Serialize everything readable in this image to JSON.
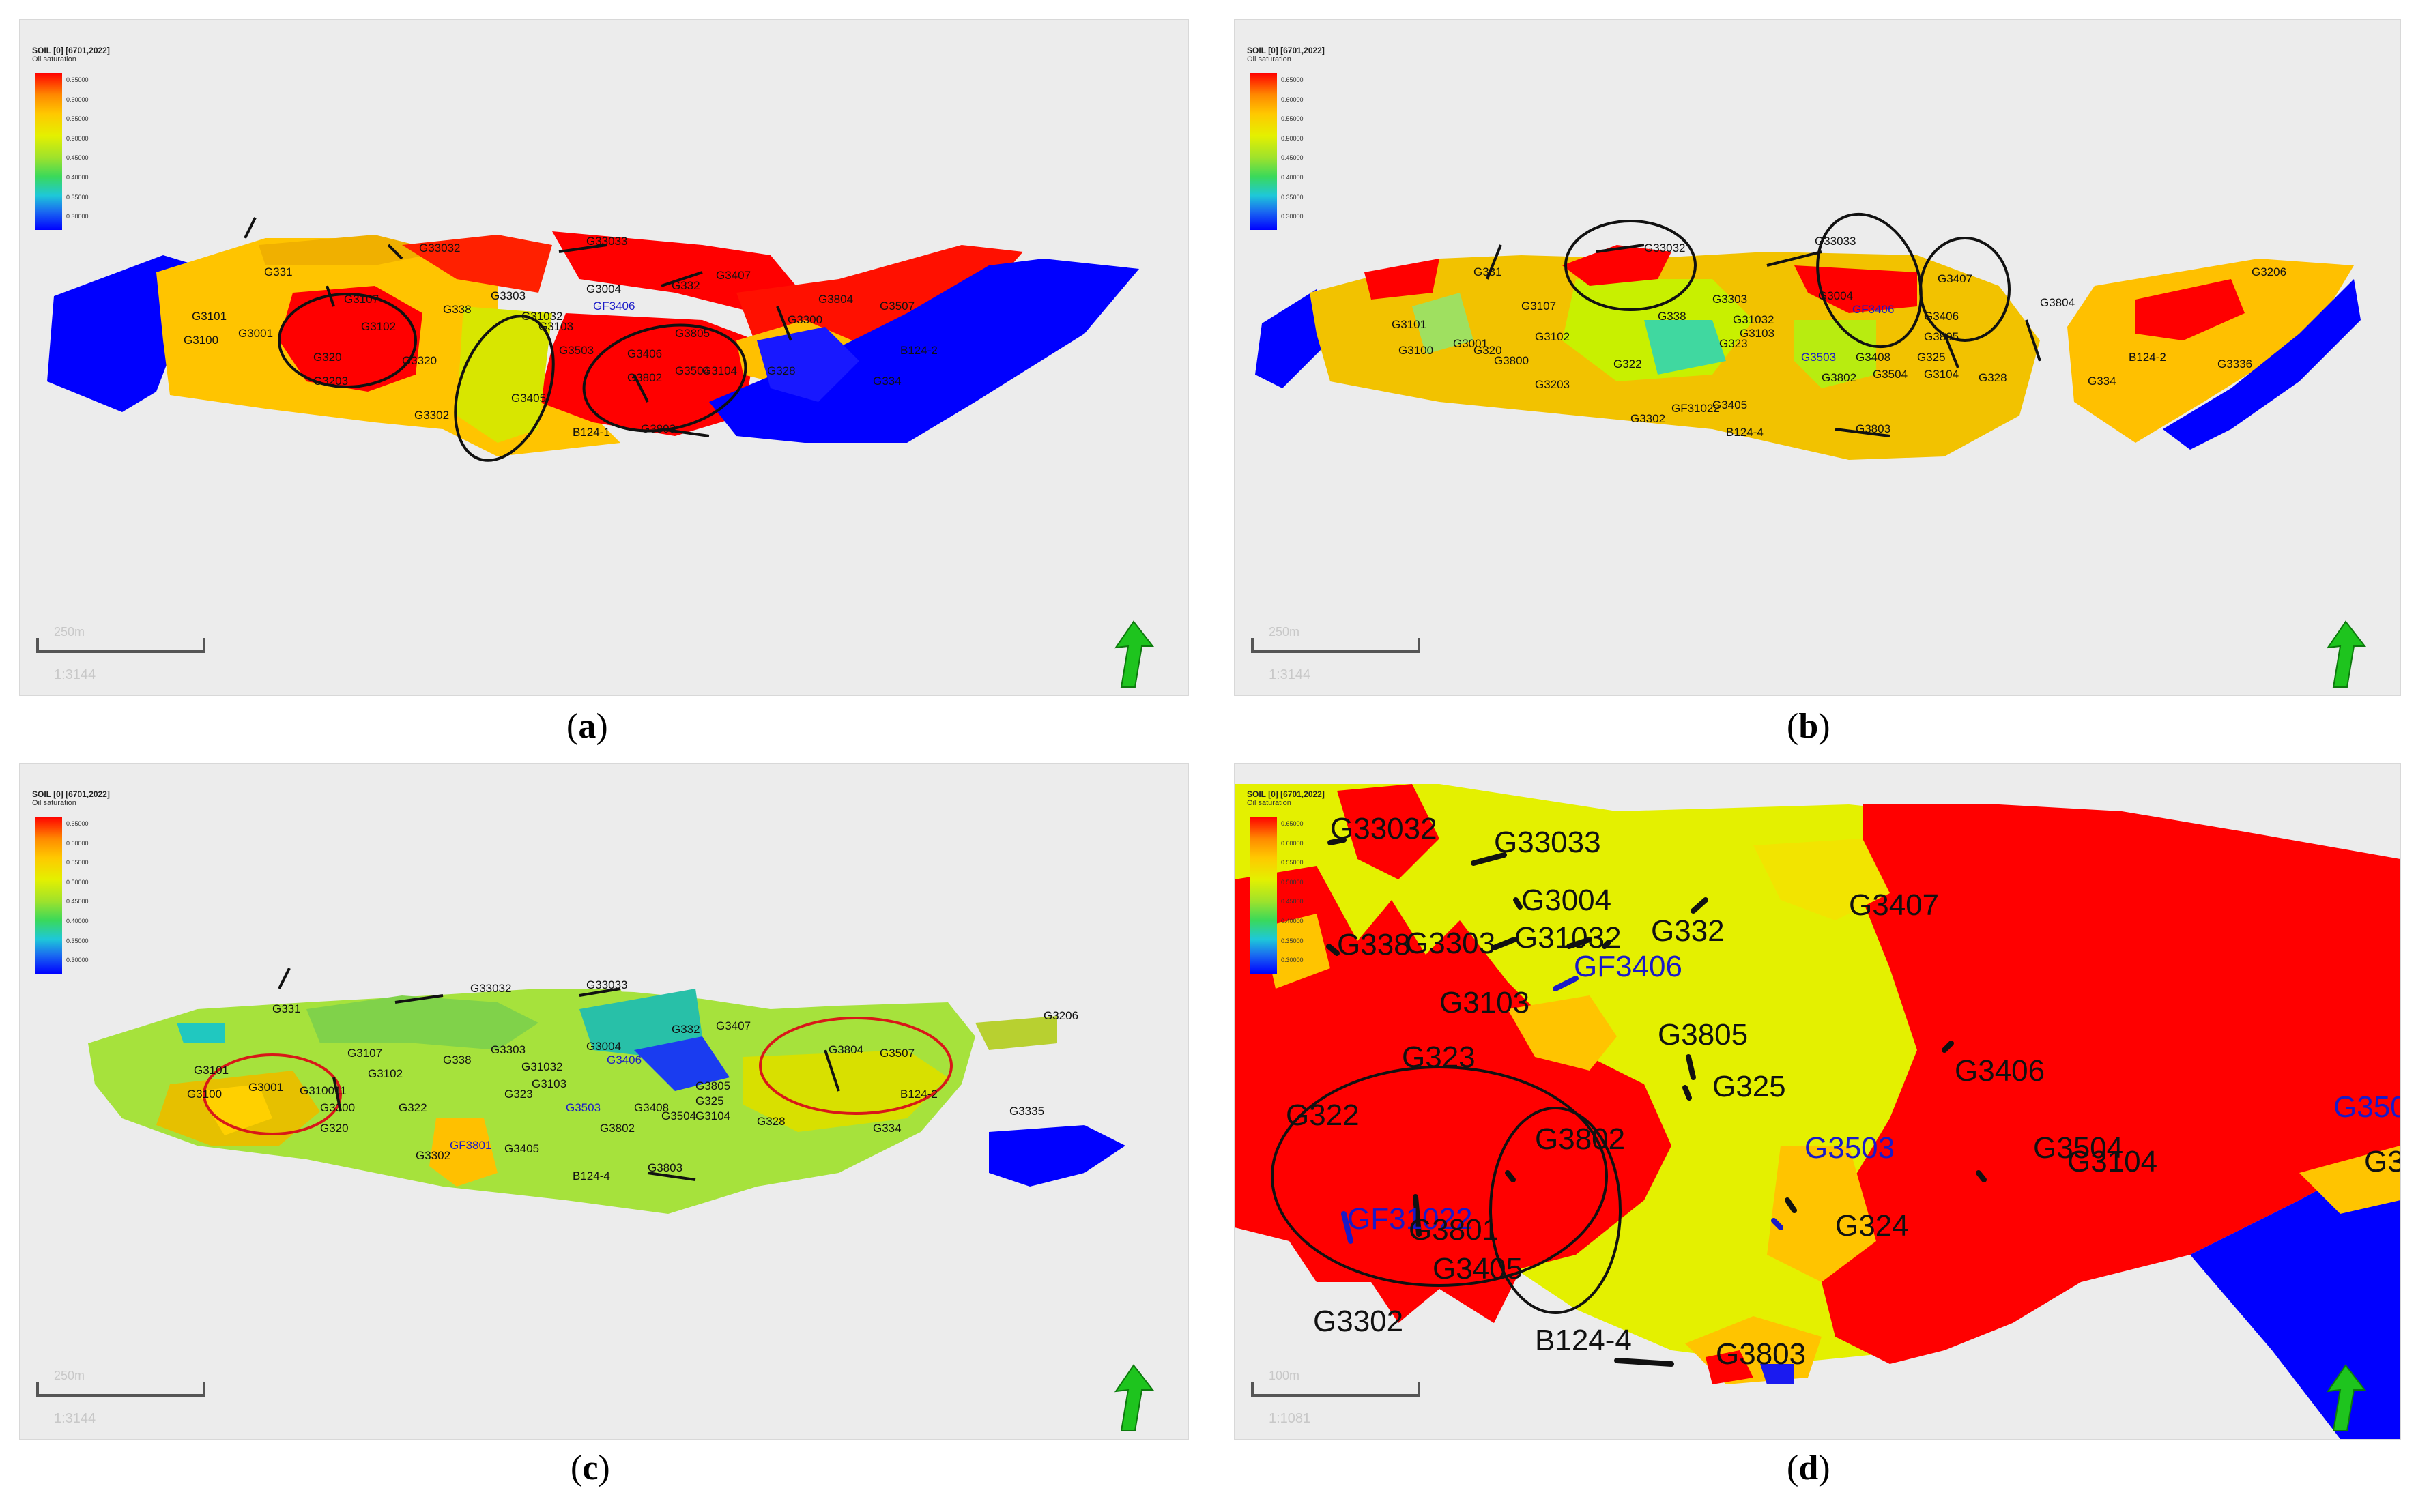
{
  "captions": {
    "a": "a",
    "b": "b",
    "c": "c",
    "d": "d"
  },
  "legend": {
    "title": "SOIL [0] [6701,2022]",
    "subtitle": "Oil saturation",
    "ticks": [
      "0.65000",
      "0.60000",
      "0.55000",
      "0.50000",
      "0.45000",
      "0.40000",
      "0.35000",
      "0.30000"
    ]
  },
  "scale": {
    "label_abc": "250m",
    "ratio_abc": "1:3144",
    "label_d": "100m",
    "ratio_d": "1:1081"
  },
  "colors": {
    "red": "#ff0000",
    "orange": "#ffc000",
    "yellow": "#f2e400",
    "lime": "#c8f000",
    "green": "#8ee040",
    "teal": "#30c0a0",
    "blue": "#0000ff",
    "arrow": "#1ec41e"
  },
  "wells_a": [
    "G331",
    "G33032",
    "G33033",
    "G332",
    "G3407",
    "G3101",
    "G3001",
    "G3107",
    "G3100",
    "G3102",
    "G338",
    "G3303",
    "G31032",
    "G3004",
    "GF3406",
    "G3103",
    "G3804",
    "G3507",
    "G3805",
    "G3300",
    "G3503",
    "G3406",
    "G320",
    "G3802",
    "G328",
    "B124-2",
    "G3203",
    "G3302",
    "G3405",
    "G3803",
    "B124-1",
    "G334",
    "G3104",
    "G3504",
    "G3320"
  ],
  "wells_b": [
    "G331",
    "G33032",
    "G33033",
    "G3407",
    "G3206",
    "G3101",
    "G3107",
    "G3001",
    "G3102",
    "G338",
    "G3303",
    "G31032",
    "G3004",
    "GF3406",
    "G3804",
    "G3100",
    "G3800",
    "G3103",
    "G3406",
    "G3805",
    "G320",
    "G323",
    "G3503",
    "G322",
    "G3408",
    "G3802",
    "G325",
    "G3104",
    "G3504",
    "G328",
    "B124-2",
    "G334",
    "G3203",
    "G3302",
    "GF31022",
    "G3405",
    "B124-4",
    "G3803",
    "G3336"
  ],
  "wells_c": [
    "G331",
    "G33032",
    "G33033",
    "G332",
    "G3407",
    "G3206",
    "G3101",
    "G3001",
    "G3107",
    "G3102",
    "G338",
    "G3303",
    "G31032",
    "G3004",
    "G3406",
    "G3804",
    "G3507",
    "G3100",
    "G310011",
    "G3300",
    "G322",
    "G3103",
    "G323",
    "G3503",
    "G3408",
    "G3805",
    "G325",
    "G3104",
    "G3504",
    "G328",
    "B124-2",
    "G320",
    "G3302",
    "GF3801",
    "G3405",
    "G3802",
    "G3335",
    "G334",
    "B124-4",
    "G3803"
  ],
  "wells_d": [
    "G33032",
    "G33033",
    "G3004",
    "G338",
    "G3303",
    "G31032",
    "GF3406",
    "G332",
    "G3407",
    "G3103",
    "G323",
    "G3805",
    "G3406",
    "G325",
    "G350",
    "G322",
    "G3802",
    "G3503",
    "G3504",
    "G3104",
    "G3",
    "GF31022",
    "G3801",
    "G324",
    "G3405",
    "G3302",
    "B124-4",
    "G3803"
  ]
}
